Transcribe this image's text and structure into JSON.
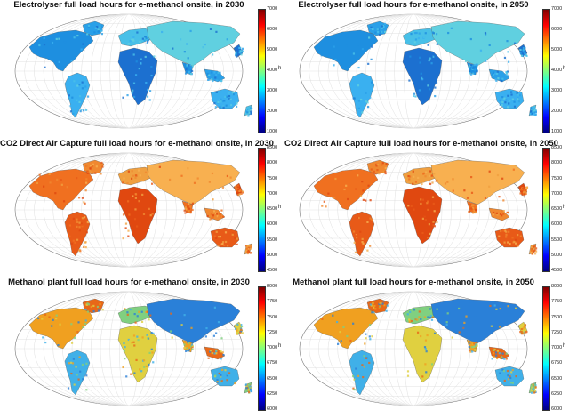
{
  "panels": [
    {
      "title": "Electrolyser full load hours for e-methanol onsite, in 2030",
      "ticks": [
        "7000",
        "6000",
        "5000",
        "4000",
        "3000",
        "2000",
        "1000"
      ],
      "unit": "h",
      "scheme": "blue",
      "accent": "#1e90ff"
    },
    {
      "title": "Electrolyser full load hours for e-methanol onsite, in 2050",
      "ticks": [
        "7000",
        "6000",
        "5000",
        "4000",
        "3000",
        "2000",
        "1000"
      ],
      "unit": "h",
      "scheme": "blue",
      "accent": "#1e90ff"
    },
    {
      "title": "CO2 Direct Air Capture full load hours for e-methanol onsite, in 2030",
      "ticks": [
        "8500",
        "8000",
        "7500",
        "7000",
        "6500",
        "6000",
        "5500",
        "5000",
        "4500"
      ],
      "unit": "h",
      "scheme": "orange",
      "accent": "#f07020"
    },
    {
      "title": "CO2 Direct Air Capture full load hours for e-methanol onsite, in 2050",
      "ticks": [
        "8500",
        "8000",
        "7500",
        "7000",
        "6500",
        "6000",
        "5500",
        "5000",
        "4500"
      ],
      "unit": "h",
      "scheme": "orange",
      "accent": "#f07020"
    },
    {
      "title": "Methanol plant full load hours for e-methanol onsite, in 2030",
      "ticks": [
        "8000",
        "7750",
        "7500",
        "7250",
        "7000",
        "6750",
        "6500",
        "6250",
        "6000"
      ],
      "unit": "h",
      "scheme": "mixed",
      "accent": "#e8a020"
    },
    {
      "title": "Methanol plant full load hours for e-methanol onsite, in 2050",
      "ticks": [
        "8000",
        "7750",
        "7500",
        "7250",
        "7000",
        "6750",
        "6500",
        "6250",
        "6000"
      ],
      "unit": "h",
      "scheme": "mixed",
      "accent": "#e8a020"
    }
  ]
}
